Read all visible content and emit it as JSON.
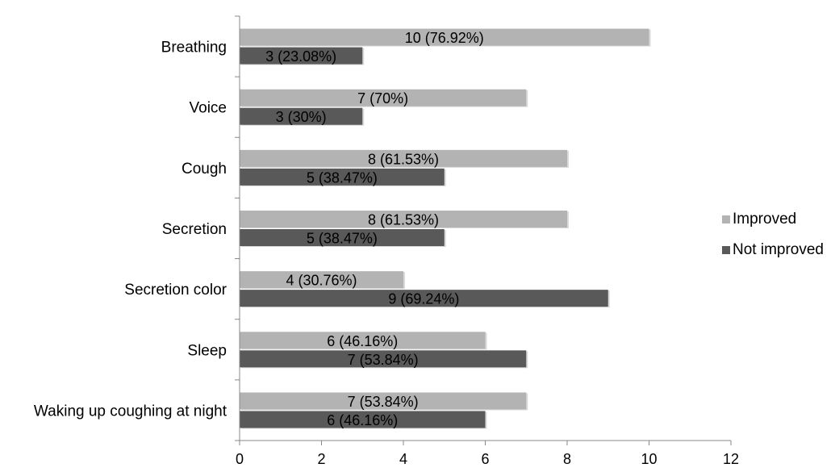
{
  "chart_data": {
    "type": "bar",
    "orientation": "horizontal",
    "categories": [
      "Breathing",
      "Voice",
      "Cough",
      "Secretion",
      "Secretion color",
      "Sleep",
      "Waking up coughing at night"
    ],
    "series": [
      {
        "name": "Improved",
        "color": "#b3b3b3",
        "values": [
          10,
          7,
          8,
          8,
          4,
          6,
          7
        ],
        "labels": [
          "10 (76.92%)",
          "7 (70%)",
          "8 (61.53%)",
          "8 (61.53%)",
          "4 (30.76%)",
          "6 (46.16%)",
          "7 (53.84%)"
        ]
      },
      {
        "name": "Not improved",
        "color": "#595959",
        "values": [
          3,
          3,
          5,
          5,
          9,
          7,
          6
        ],
        "labels": [
          "3 (23.08%)",
          "3 (30%)",
          "5 (38.47%)",
          "5 (38.47%)",
          "9 (69.24%)",
          "7 (53.84%)",
          "6 (46.16%)"
        ]
      }
    ],
    "xlim": [
      0,
      12
    ],
    "xticks": [
      "0",
      "2",
      "4",
      "6",
      "8",
      "10",
      "12"
    ],
    "grid": false,
    "legend": "right"
  }
}
